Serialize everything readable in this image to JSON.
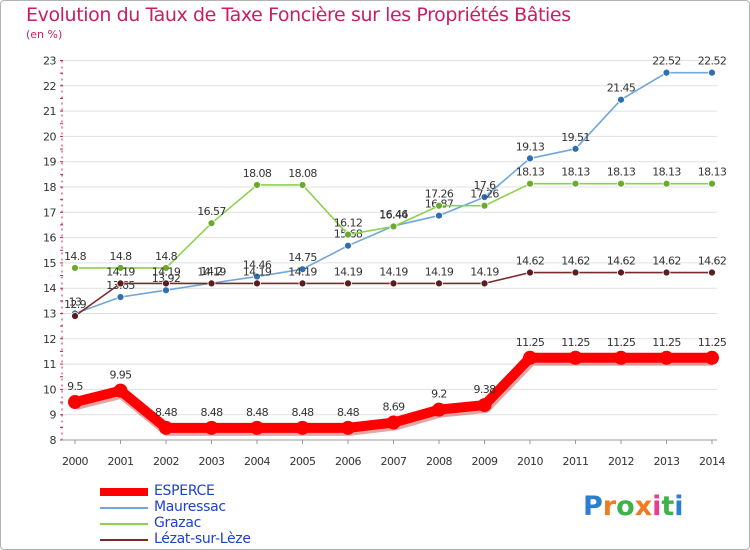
{
  "title": "Evolution du Taux de Taxe Foncière sur les Propriétés Bâties",
  "subtitle": "(en %)",
  "logo": {
    "letters": [
      "P",
      "r",
      "o",
      "x",
      "i",
      "t",
      "i"
    ],
    "colors": [
      "#2b7fd0",
      "#f07a1e",
      "#3db34a",
      "#f07a1e",
      "#e83c8c",
      "#3db34a",
      "#2b7fd0"
    ]
  },
  "chart_data": {
    "type": "line",
    "title": "Evolution du Taux de Taxe Foncière sur les Propriétés Bâties",
    "ylabel": "(en %)",
    "ylim": [
      8,
      23
    ],
    "yticks": [
      "8",
      "9",
      "10",
      "11",
      "12",
      "13",
      "14",
      "15",
      "16",
      "17",
      "18",
      "19",
      "20",
      "21",
      "22",
      "23"
    ],
    "categories": [
      "2000",
      "2001",
      "2002",
      "2003",
      "2004",
      "2005",
      "2006",
      "2007",
      "2008",
      "2009",
      "2010",
      "2011",
      "2012",
      "2013",
      "2014"
    ],
    "series": [
      {
        "name": "ESPERCE",
        "color": "#ff0000",
        "values": [
          9.5,
          9.95,
          8.48,
          8.48,
          8.48,
          8.48,
          8.48,
          8.69,
          9.2,
          9.38,
          11.25,
          11.25,
          11.25,
          11.25,
          11.25
        ],
        "labels": [
          "9.5",
          "9.95",
          "8.48",
          "8.48",
          "8.48",
          "8.48",
          "8.48",
          "8.69",
          "9.2",
          "9.38",
          "11.25",
          "11.25",
          "11.25",
          "11.25",
          "11.25"
        ]
      },
      {
        "name": "Mauressac",
        "color": "#6fa6dc",
        "values": [
          13.0,
          13.65,
          13.92,
          14.2,
          14.46,
          14.75,
          15.68,
          16.46,
          16.87,
          17.6,
          19.13,
          19.51,
          21.45,
          22.52,
          22.52
        ],
        "labels": [
          "13",
          "13.65",
          "13.92",
          "14.2",
          "14.46",
          "14.75",
          "15.68",
          "16.46",
          "16.87",
          "17.6",
          "19.13",
          "19.51",
          "21.45",
          "22.52",
          "22.52"
        ]
      },
      {
        "name": "Grazac",
        "color": "#8ed14e",
        "values": [
          14.8,
          14.8,
          14.8,
          16.57,
          18.08,
          18.08,
          16.12,
          16.44,
          17.26,
          17.26,
          18.13,
          18.13,
          18.13,
          18.13,
          18.13
        ],
        "labels": [
          "14.8",
          "14.8",
          "14.8",
          "16.57",
          "18.08",
          "18.08",
          "16.12",
          "16.44",
          "17.26",
          "17.26",
          "18.13",
          "18.13",
          "18.13",
          "18.13",
          "18.13"
        ]
      },
      {
        "name": "Lézat-sur-Lèze",
        "color": "#7a2a2a",
        "values": [
          12.9,
          14.19,
          14.19,
          14.19,
          14.19,
          14.19,
          14.19,
          14.19,
          14.19,
          14.19,
          14.62,
          14.62,
          14.62,
          14.62,
          14.62
        ],
        "labels": [
          "12.9",
          "14.19",
          "14.19",
          "14.19",
          "14.19",
          "14.19",
          "14.19",
          "14.19",
          "14.19",
          "14.19",
          "14.62",
          "14.62",
          "14.62",
          "14.62",
          "14.62"
        ]
      }
    ]
  }
}
